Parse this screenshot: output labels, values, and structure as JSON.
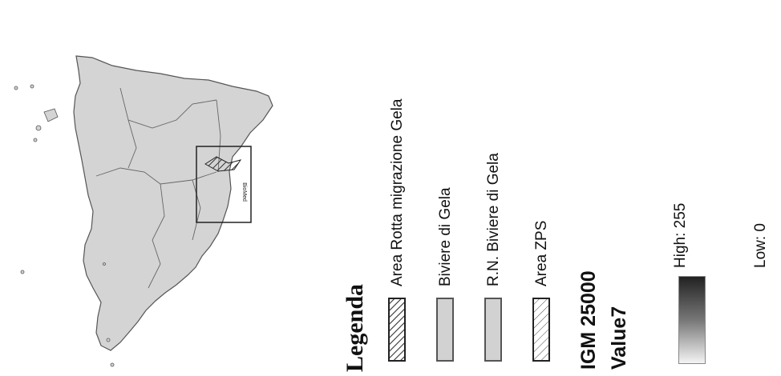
{
  "colors": {
    "land": "#d4d4d4",
    "border": "#555555",
    "rn_fill": "#d2d2d2",
    "hatch": "#333333"
  },
  "map": {
    "inset_label": "BioMed"
  },
  "legend": {
    "title": "Legenda",
    "items": [
      {
        "label": "Area Rotta migrazione Gela",
        "symbol": "dense-hatch"
      },
      {
        "label": "Biviere di Gela",
        "symbol": "grey-fill"
      },
      {
        "label": "R.N. Biviere di Gela",
        "symbol": "grey-fill"
      },
      {
        "label": "Area ZPS",
        "symbol": "light-hatch"
      }
    ],
    "raster_title": "IGM 25000",
    "raster_band": "Value7",
    "high_label": "High: 255",
    "low_label": "Low: 0"
  }
}
